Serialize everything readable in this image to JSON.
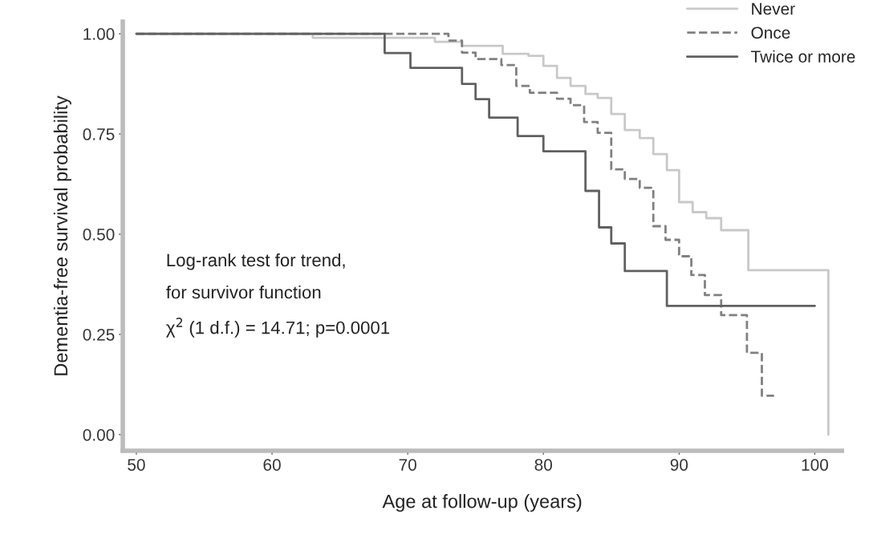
{
  "chart_data": {
    "type": "step",
    "xlabel": "Age at follow-up (years)",
    "ylabel": "Dementia-free survival probability",
    "xlim": [
      49,
      102
    ],
    "ylim": [
      -0.04,
      1.03
    ],
    "xticks": [
      50,
      60,
      70,
      80,
      90,
      100
    ],
    "yticks": [
      {
        "value": 0,
        "label": "0.00"
      },
      {
        "value": 0.25,
        "label": "0.25"
      },
      {
        "value": 0.5,
        "label": "0.50"
      },
      {
        "value": 0.75,
        "label": "0.75"
      },
      {
        "value": 1,
        "label": "1.00"
      }
    ],
    "legend": "top right",
    "grid": false,
    "annotations": [
      "Log-rank test for trend,",
      "for survivor function",
      "χ$^{2}$ (1 d.f.) = 14.71; p=0.0001"
    ],
    "series": [
      {
        "name": "Never",
        "color": "#c8c8c8",
        "line_style": "solid",
        "x": [
          50,
          63,
          72,
          74,
          77,
          78.9,
          80,
          81,
          82,
          83.1,
          84,
          85,
          86,
          87.1,
          88.1,
          89.1,
          90,
          91,
          92,
          93.1,
          95.1,
          101,
          101
        ],
        "values": [
          1.0,
          0.99,
          0.98,
          0.97,
          0.95,
          0.945,
          0.92,
          0.89,
          0.87,
          0.85,
          0.84,
          0.8,
          0.76,
          0.74,
          0.7,
          0.66,
          0.58,
          0.555,
          0.54,
          0.51,
          0.41,
          0.0,
          0.0
        ]
      },
      {
        "name": "Once",
        "color": "#808080",
        "line_style": "dashed",
        "x": [
          50,
          73,
          74,
          75,
          76.9,
          78,
          79,
          81,
          82,
          83,
          84,
          85,
          86,
          87.1,
          88.1,
          89,
          90,
          90.9,
          91.9,
          93.1,
          95,
          96.1,
          97
        ],
        "values": [
          1.0,
          0.983,
          0.953,
          0.937,
          0.922,
          0.87,
          0.853,
          0.838,
          0.822,
          0.78,
          0.753,
          0.662,
          0.638,
          0.616,
          0.52,
          0.486,
          0.445,
          0.398,
          0.348,
          0.298,
          0.204,
          0.097,
          0.097
        ]
      },
      {
        "name": "Twice or more",
        "color": "#606060",
        "line_style": "solid",
        "x": [
          50,
          68.3,
          70.2,
          74,
          75,
          76,
          78.1,
          80,
          83.1,
          84.1,
          85,
          86,
          89.1,
          100
        ],
        "values": [
          1.0,
          0.952,
          0.915,
          0.875,
          0.837,
          0.791,
          0.745,
          0.707,
          0.608,
          0.517,
          0.477,
          0.408,
          0.321,
          0.321
        ]
      }
    ]
  }
}
